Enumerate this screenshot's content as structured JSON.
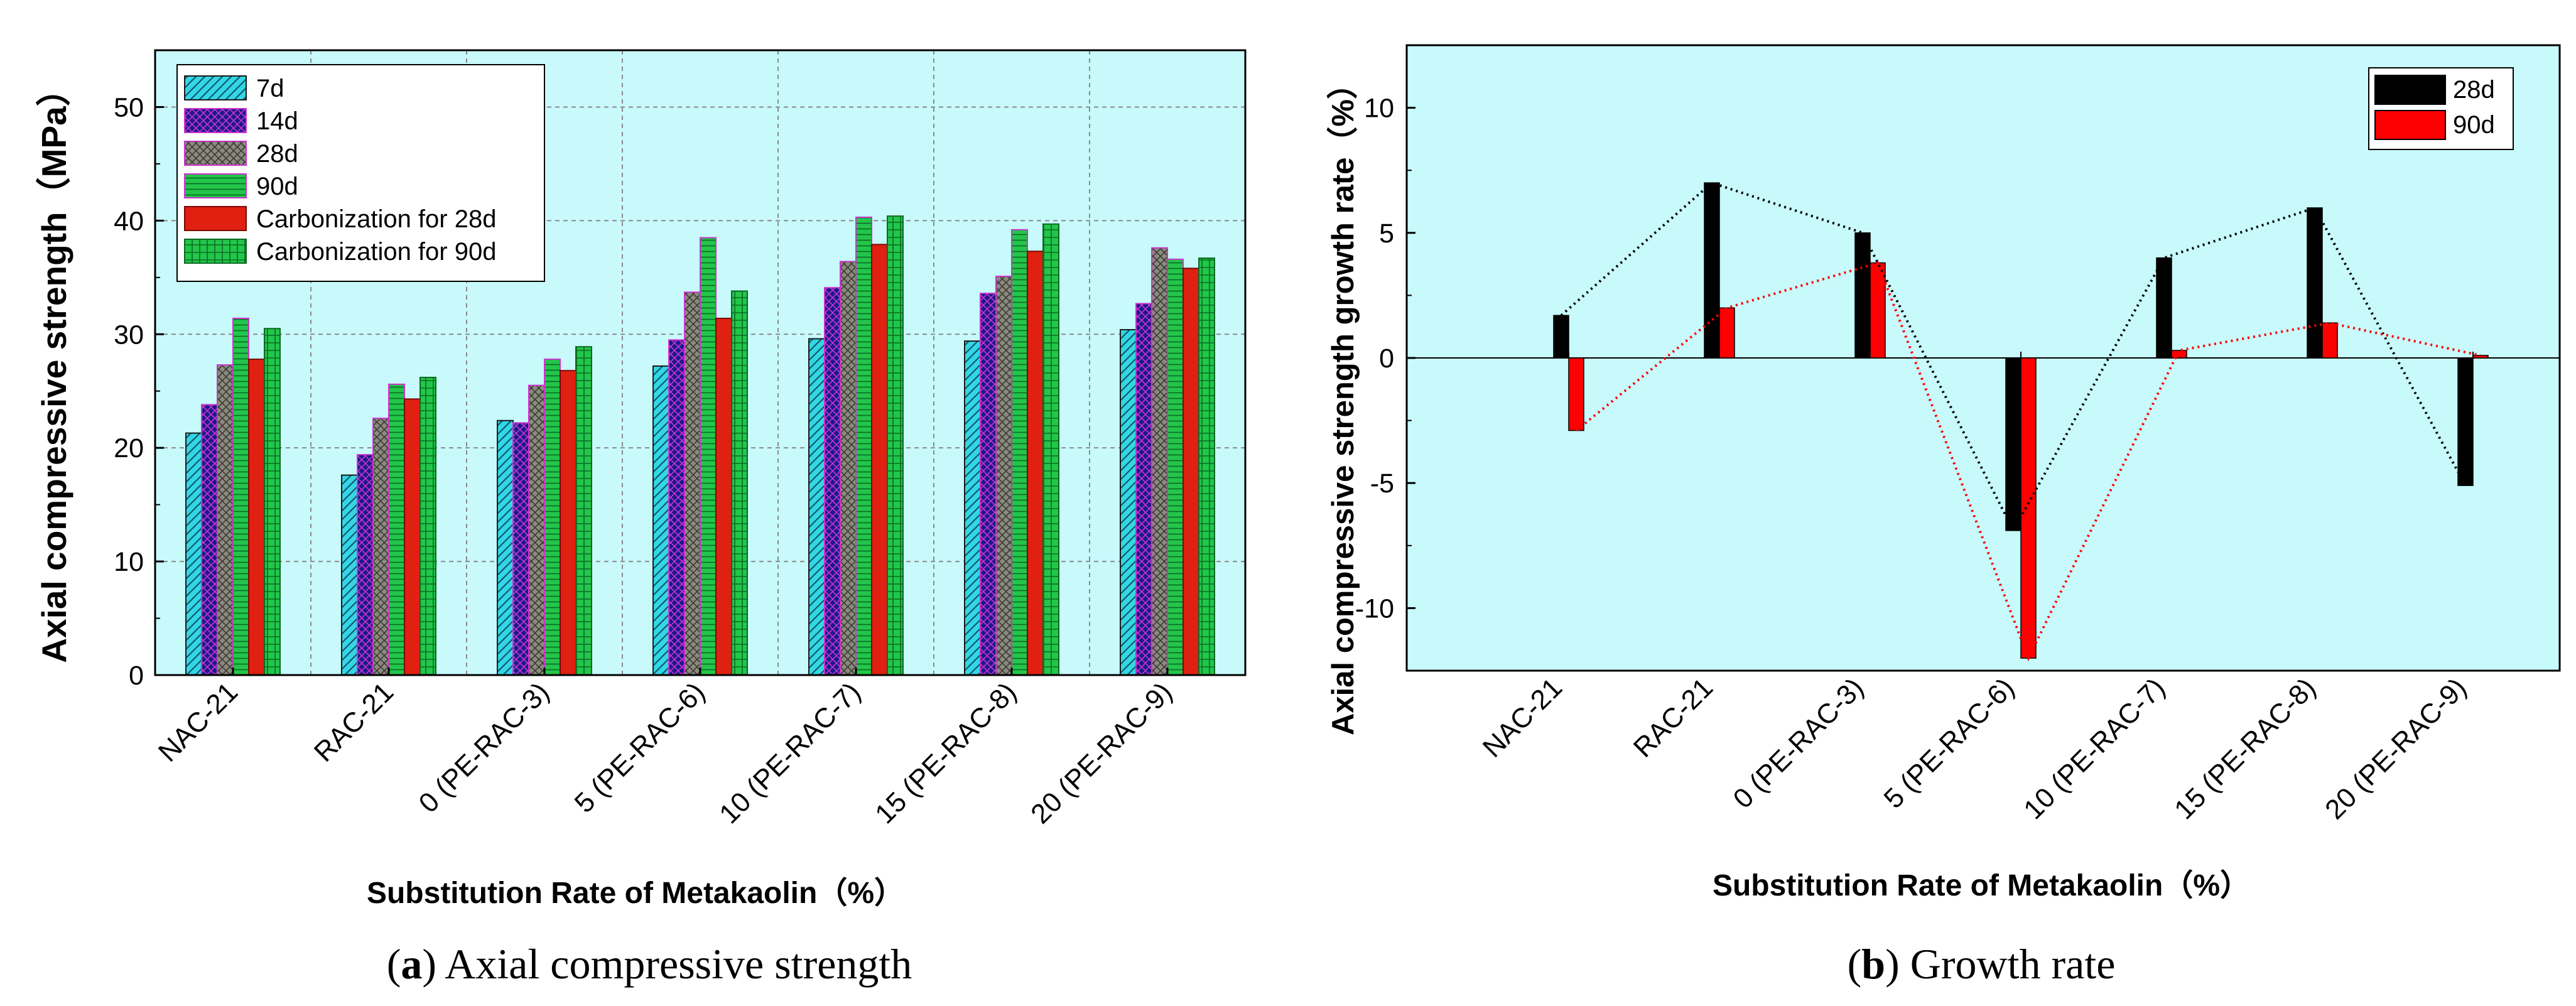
{
  "chart_data": [
    {
      "type": "bar",
      "caption": {
        "letter": "a",
        "text": "Axial compressive strength"
      },
      "xlabel": "Substitution Rate of Metakaolin（%）",
      "ylabel": "Axial compressive strength（MPa）",
      "ylim": [
        0,
        55
      ],
      "yticks": [
        0,
        10,
        20,
        30,
        40,
        50
      ],
      "grid": true,
      "legend_position": "top-left",
      "background": "#c8fafc",
      "categories": [
        "NAC-21",
        "RAC-21",
        "0 (PE-RAC-3)",
        "5 (PE-RAC-6)",
        "10 (PE-RAC-7)",
        "15 (PE-RAC-8)",
        "20 (PE-RAC-9)"
      ],
      "series": [
        {
          "name": "7d",
          "color": "#33d6e6",
          "pattern": "diagonal",
          "values": [
            21.3,
            17.6,
            22.4,
            27.2,
            29.6,
            29.4,
            30.4
          ]
        },
        {
          "name": "14d",
          "color": "#1a1a8c",
          "pattern": "crosshatch",
          "values": [
            23.8,
            19.4,
            22.2,
            29.5,
            34.1,
            33.6,
            32.7
          ]
        },
        {
          "name": "28d",
          "color": "#7f7f72",
          "pattern": "crosshatch",
          "values": [
            27.3,
            22.6,
            25.5,
            33.7,
            36.4,
            35.1,
            37.6
          ]
        },
        {
          "name": "90d",
          "color": "#22c64a",
          "pattern": "horizontal",
          "values": [
            31.4,
            25.6,
            27.8,
            38.5,
            40.3,
            39.2,
            36.6
          ]
        },
        {
          "name": "Carbonization for 28d",
          "color": "#e02010",
          "pattern": "solid",
          "values": [
            27.8,
            24.3,
            26.8,
            31.4,
            37.9,
            37.3,
            35.8
          ]
        },
        {
          "name": "Carbonization for 90d",
          "color": "#22c64a",
          "pattern": "grid",
          "values": [
            30.5,
            26.2,
            28.9,
            33.8,
            40.4,
            39.7,
            36.7
          ]
        }
      ]
    },
    {
      "type": "bar",
      "caption": {
        "letter": "b",
        "text": "Growth rate"
      },
      "xlabel": "Substitution Rate of Metakaolin（%）",
      "ylabel": "Axial compressive strength growth rate（%）",
      "ylim": [
        -12.5,
        12.5
      ],
      "yticks": [
        -10,
        -5,
        0,
        5,
        10
      ],
      "grid": false,
      "legend_position": "top-right",
      "background": "#c8fafc",
      "connecting_lines": "dotted",
      "categories": [
        "NAC-21",
        "RAC-21",
        "0 (PE-RAC-3)",
        "5 (PE-RAC-6)",
        "10 (PE-RAC-7)",
        "15 (PE-RAC-8)",
        "20 (PE-RAC-9)"
      ],
      "series": [
        {
          "name": "28d",
          "color": "#000000",
          "values": [
            1.7,
            7.0,
            5.0,
            -6.9,
            4.0,
            6.0,
            -5.1
          ]
        },
        {
          "name": "90d",
          "color": "#ff0000",
          "values": [
            -2.9,
            2.0,
            3.8,
            -12.0,
            0.3,
            1.4,
            0.1
          ]
        }
      ]
    }
  ]
}
